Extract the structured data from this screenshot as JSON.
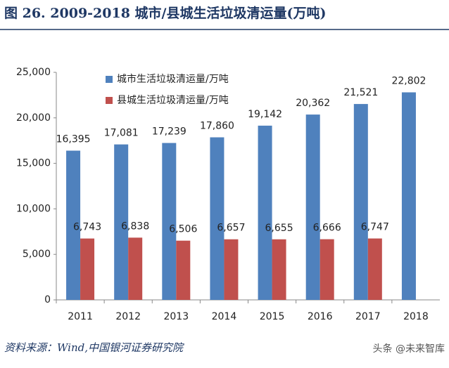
{
  "chart_data": {
    "type": "bar",
    "title": "图 26. 2009-2018 城市/县城生活垃圾清运量(万吨)",
    "source": "资料来源：Wind,中国银河证券研究院",
    "watermark": "头条 @未来智库",
    "categories": [
      "2011",
      "2012",
      "2013",
      "2014",
      "2015",
      "2016",
      "2017",
      "2018"
    ],
    "series": [
      {
        "name": "城市生活垃圾清运量/万吨",
        "color": "#4f81bd",
        "values": [
          16395,
          17081,
          17239,
          17860,
          19142,
          20362,
          21521,
          22802
        ],
        "value_labels": [
          "16,395",
          "17,081",
          "17,239",
          "17,860",
          "19,142",
          "20,362",
          "21,521",
          "22,802"
        ]
      },
      {
        "name": "县城生活垃圾清运量/万吨",
        "color": "#c0504d",
        "values": [
          6743,
          6838,
          6506,
          6657,
          6655,
          6666,
          6747,
          null
        ],
        "value_labels": [
          "6,743",
          "6,838",
          "6,506",
          "6,657",
          "6,655",
          "6,666",
          "6,747",
          null
        ]
      }
    ],
    "ylim": [
      0,
      25000
    ],
    "yticks": [
      0,
      {
        "value": 5000,
        "label": "5,000"
      },
      {
        "value": 10000,
        "label": "10,000"
      },
      {
        "value": 15000,
        "label": "15,000"
      },
      {
        "value": 20000,
        "label": "20,000"
      },
      {
        "value": 25000,
        "label": "25,000"
      }
    ],
    "legend": "top-left"
  }
}
